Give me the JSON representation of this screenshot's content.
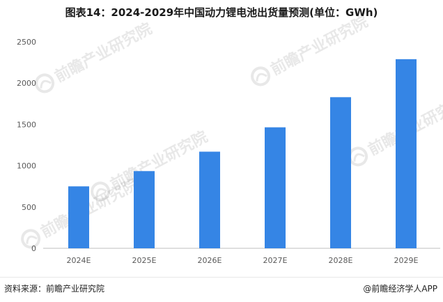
{
  "chart_data": {
    "type": "bar",
    "title": "图表14：2024-2029年中国动力锂电池出货量预测(单位：GWh)",
    "categories": [
      "2024E",
      "2025E",
      "2026E",
      "2027E",
      "2028E",
      "2029E"
    ],
    "series": [
      {
        "values": [
          750,
          935,
          1170,
          1465,
          1830,
          2290
        ]
      }
    ],
    "xlabel": "",
    "ylabel": "",
    "ylim": [
      0,
      2500
    ],
    "yticks": [
      0,
      500,
      1000,
      1500,
      2000,
      2500
    ],
    "grid": false,
    "legend": "none",
    "bar_color": "#3585e5"
  },
  "watermark": {
    "text": "前瞻产业研究院"
  },
  "footer": {
    "source": "资料来源：前瞻产业研究院",
    "brand": "@前瞻经济学人APP"
  }
}
